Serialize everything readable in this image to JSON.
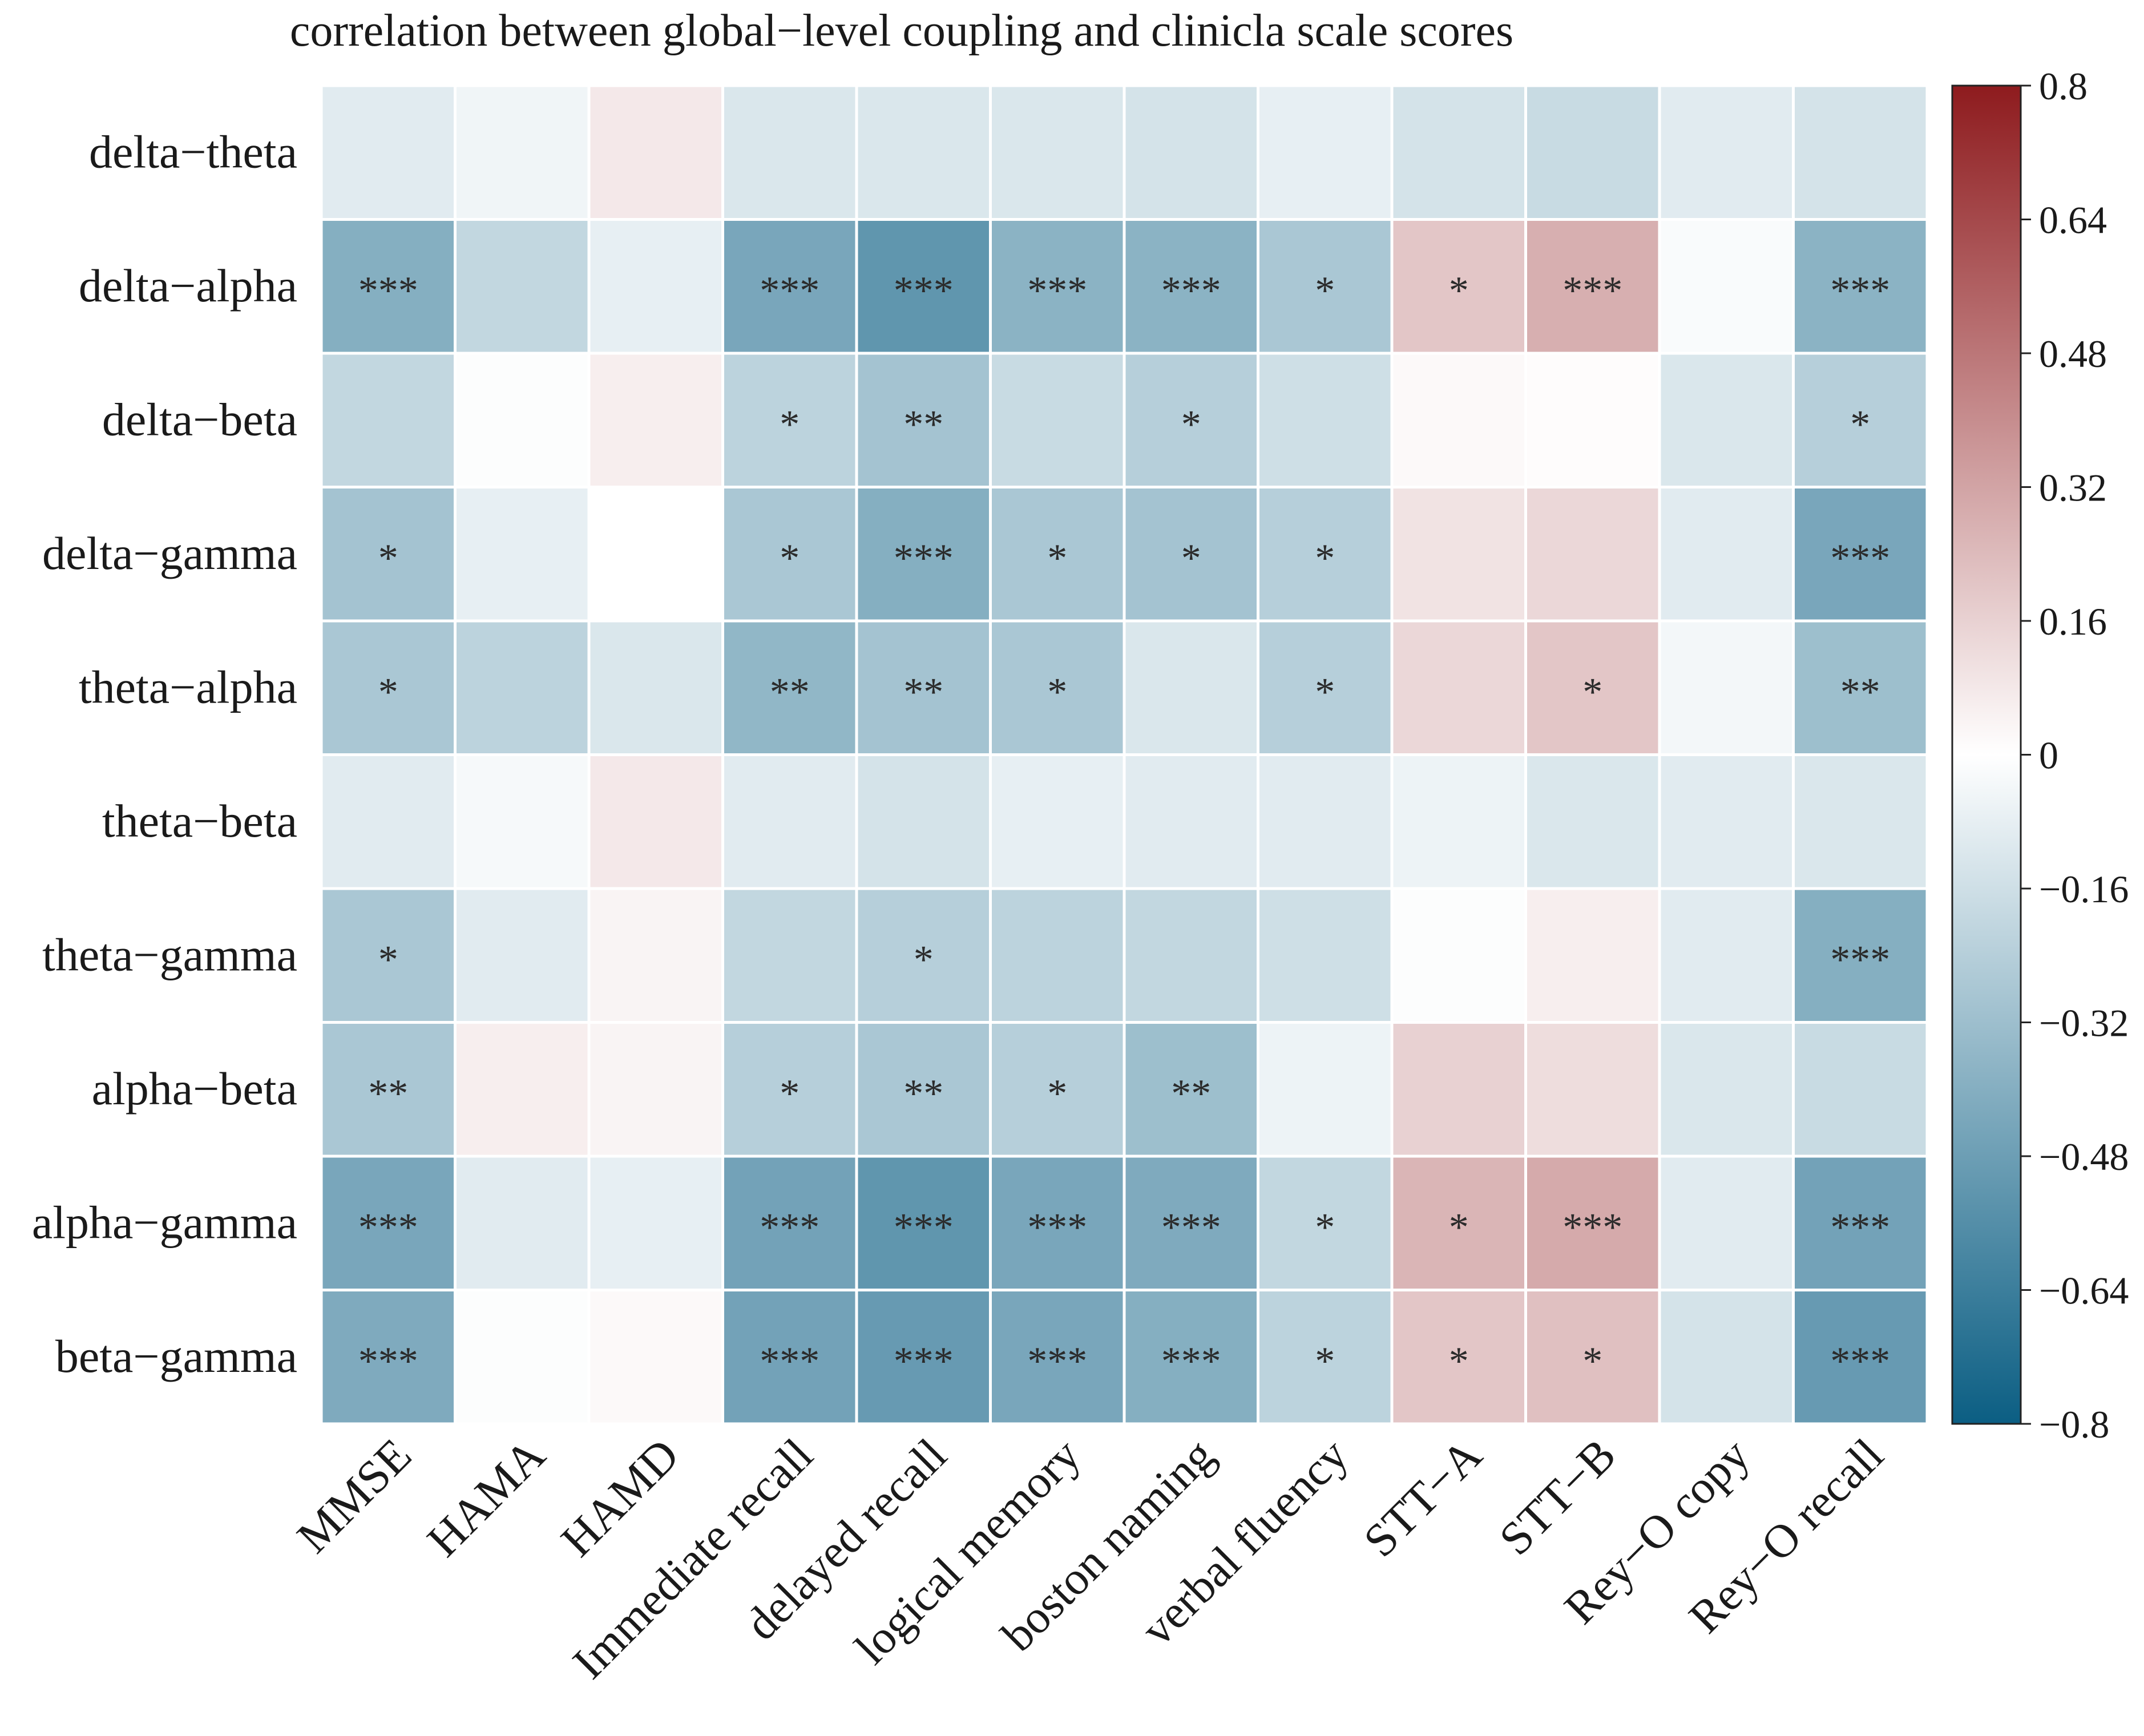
{
  "chart_data": {
    "type": "heatmap",
    "title": "correlation between global−level coupling and clinicla scale scores",
    "rows": [
      "delta−theta",
      "delta−alpha",
      "delta−beta",
      "delta−gamma",
      "theta−alpha",
      "theta−beta",
      "theta−gamma",
      "alpha−beta",
      "alpha−gamma",
      "beta−gamma"
    ],
    "columns": [
      "MMSE",
      "HAMA",
      "HAMD",
      "Immediate recall",
      "delayed recall",
      "logical memory",
      "boston naming",
      "verbal fluency",
      "STT−A",
      "STT−B",
      "Rey−O copy",
      "Rey−O recall"
    ],
    "values": [
      [
        -0.1,
        -0.05,
        0.08,
        -0.12,
        -0.12,
        -0.12,
        -0.14,
        -0.08,
        -0.14,
        -0.18,
        -0.1,
        -0.14
      ],
      [
        -0.4,
        -0.2,
        -0.08,
        -0.44,
        -0.52,
        -0.38,
        -0.38,
        -0.28,
        0.2,
        0.28,
        -0.02,
        -0.38
      ],
      [
        -0.2,
        -0.01,
        0.06,
        -0.22,
        -0.3,
        -0.18,
        -0.24,
        -0.16,
        0.02,
        0.01,
        -0.12,
        -0.24
      ],
      [
        -0.3,
        -0.08,
        0.0,
        -0.28,
        -0.4,
        -0.28,
        -0.3,
        -0.24,
        0.1,
        0.14,
        -0.1,
        -0.44
      ],
      [
        -0.28,
        -0.22,
        -0.12,
        -0.36,
        -0.3,
        -0.28,
        -0.12,
        -0.24,
        0.14,
        0.2,
        -0.04,
        -0.32
      ],
      [
        -0.1,
        -0.03,
        0.08,
        -0.1,
        -0.14,
        -0.08,
        -0.1,
        -0.1,
        -0.06,
        -0.12,
        -0.1,
        -0.12
      ],
      [
        -0.28,
        -0.1,
        0.04,
        -0.2,
        -0.24,
        -0.22,
        -0.2,
        -0.16,
        -0.01,
        0.06,
        -0.1,
        -0.4
      ],
      [
        -0.28,
        0.06,
        0.04,
        -0.24,
        -0.28,
        -0.24,
        -0.32,
        -0.06,
        0.16,
        0.12,
        -0.12,
        -0.18
      ],
      [
        -0.44,
        -0.1,
        -0.08,
        -0.46,
        -0.52,
        -0.44,
        -0.42,
        -0.2,
        0.26,
        0.3,
        -0.1,
        -0.46
      ],
      [
        -0.42,
        -0.01,
        0.02,
        -0.46,
        -0.5,
        -0.44,
        -0.4,
        -0.22,
        0.2,
        0.22,
        -0.14,
        -0.5
      ]
    ],
    "significance": [
      [
        "",
        "",
        "",
        "",
        "",
        "",
        "",
        "",
        "",
        "",
        "",
        ""
      ],
      [
        "***",
        "",
        "",
        "***",
        "***",
        "***",
        "***",
        "*",
        "*",
        "***",
        "",
        "***"
      ],
      [
        "",
        "",
        "",
        "*",
        "**",
        "",
        "*",
        "",
        "",
        "",
        "",
        "*"
      ],
      [
        "*",
        "",
        "",
        "*",
        "***",
        "*",
        "*",
        "*",
        "",
        "",
        "",
        "***"
      ],
      [
        "*",
        "",
        "",
        "**",
        "**",
        "*",
        "",
        "*",
        "",
        "*",
        "",
        "**"
      ],
      [
        "",
        "",
        "",
        "",
        "",
        "",
        "",
        "",
        "",
        "",
        "",
        ""
      ],
      [
        "*",
        "",
        "",
        "",
        "*",
        "",
        "",
        "",
        "",
        "",
        "",
        "***"
      ],
      [
        "**",
        "",
        "",
        "*",
        "**",
        "*",
        "**",
        "",
        "",
        "",
        "",
        ""
      ],
      [
        "***",
        "",
        "",
        "***",
        "***",
        "***",
        "***",
        "*",
        "*",
        "***",
        "",
        "***"
      ],
      [
        "***",
        "",
        "",
        "***",
        "***",
        "***",
        "***",
        "*",
        "*",
        "*",
        "",
        "***"
      ]
    ],
    "colorbar": {
      "range": [
        -0.8,
        0.8
      ],
      "ticks": [
        "0.8",
        "0.64",
        "0.48",
        "0.32",
        "0.16",
        "0",
        "−0.16",
        "−0.32",
        "−0.48",
        "−0.64",
        "−0.8"
      ],
      "tick_values": [
        0.8,
        0.64,
        0.48,
        0.32,
        0.16,
        0,
        -0.16,
        -0.32,
        -0.48,
        -0.64,
        -0.8
      ],
      "negative_color": "#0b5e83",
      "zero_color": "#ffffff",
      "positive_color": "#8e1b1e"
    }
  }
}
